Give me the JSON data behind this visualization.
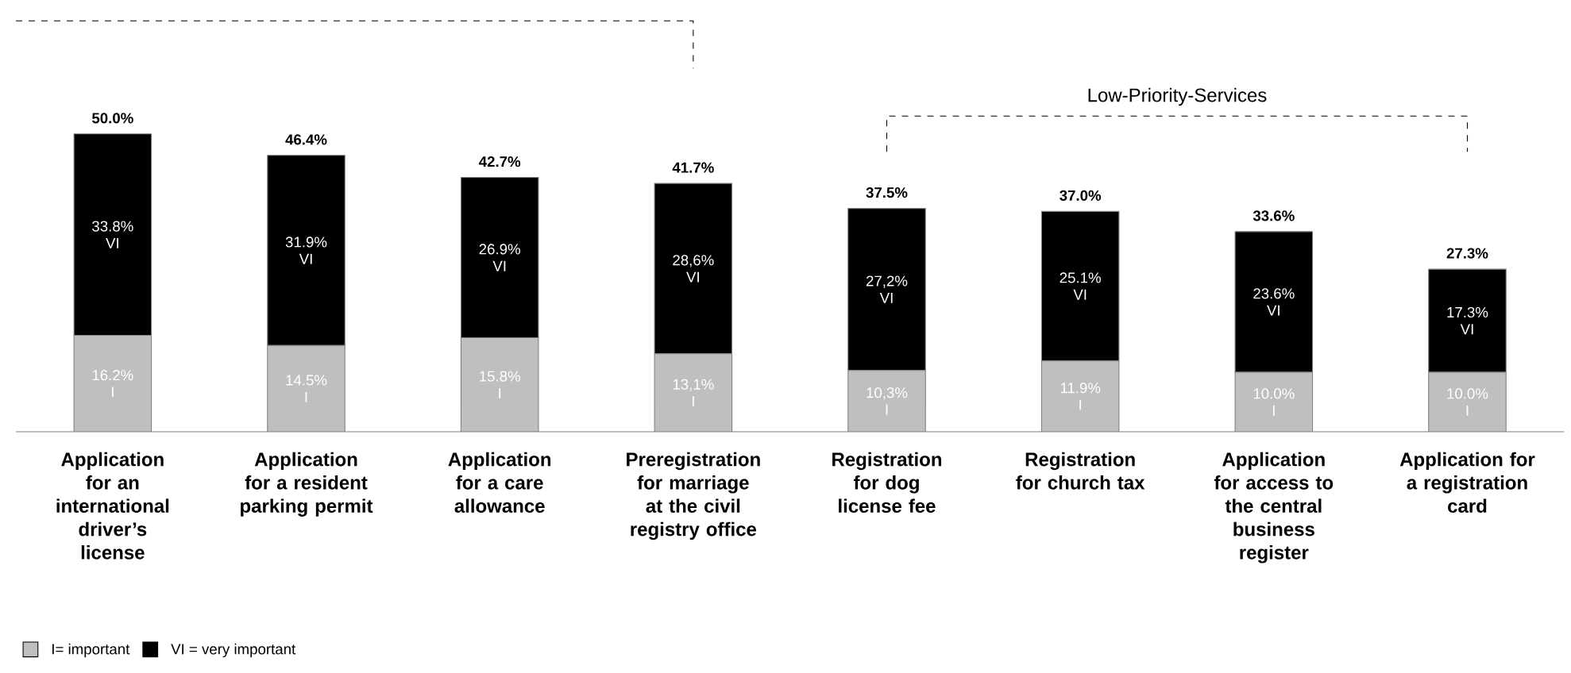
{
  "chart_data": {
    "type": "bar",
    "stacked": true,
    "legend": "bottom left",
    "categories": [
      "Application for an international driver’s license",
      "Application for a resident parking permit",
      "Application for a care allowance",
      "Preregistration for marriage at the civil registry office",
      "Registration for dog license fee",
      "Registration for church tax",
      "Application for access to the central business register",
      "Application for a registration card"
    ],
    "series": [
      {
        "name": "I= important",
        "color": "#bfbfbf",
        "values": [
          16.2,
          14.5,
          15.8,
          13.1,
          10.3,
          11.9,
          10.0,
          10.0
        ],
        "value_labels": [
          "16.2% I",
          "14.5% I",
          "15.8% I",
          "13,1% I",
          "10,3% I",
          "11.9% I",
          "10.0% I",
          "10.0% I"
        ]
      },
      {
        "name": "VI = very important",
        "color": "#000000",
        "values": [
          33.8,
          31.9,
          26.9,
          28.6,
          27.2,
          25.1,
          23.6,
          17.3
        ],
        "value_labels": [
          "33.8% VI",
          "31.9% VI",
          "26.9% VI",
          "28,6% VI",
          "27,2% VI",
          "25.1% VI",
          "23.6% VI",
          "17.3% VI"
        ]
      }
    ],
    "totals": [
      "50.0%",
      "46.4%",
      "42.7%",
      "41.7%",
      "37.5%",
      "37.0%",
      "33.6%",
      "27.3%"
    ],
    "annotations": [
      "Low-Priority-Services"
    ]
  }
}
